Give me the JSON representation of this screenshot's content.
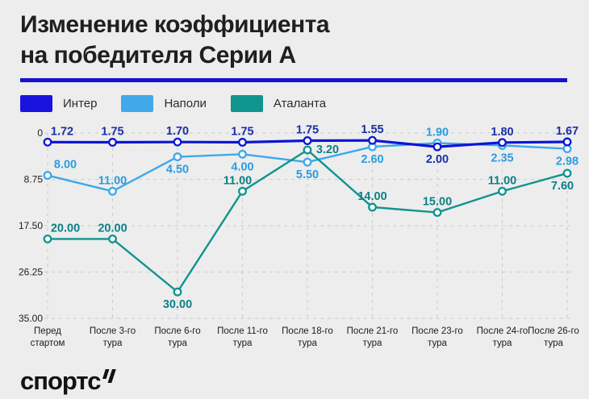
{
  "title": {
    "line1": "Изменение коэффициента",
    "line2": "на победителя Серии А"
  },
  "accent_rule_color": "#1512d0",
  "background_color": "#ededed",
  "legend": [
    {
      "label": "Интер",
      "color": "#1a13e0"
    },
    {
      "label": "Наполи",
      "color": "#41a9ea"
    },
    {
      "label": "Аталанта",
      "color": "#0f948e"
    }
  ],
  "chart_data": {
    "type": "line",
    "title": "Изменение коэффициента на победителя Серии А",
    "categories": [
      [
        "Перед",
        "стартом"
      ],
      [
        "После 3-го",
        "тура"
      ],
      [
        "После 6-го",
        "тура"
      ],
      [
        "После 11-го",
        "тура"
      ],
      [
        "После 18-го",
        "тура"
      ],
      [
        "После 21-го",
        "тура"
      ],
      [
        "После 23-го",
        "тура"
      ],
      [
        "После 24-го",
        "тура"
      ],
      [
        "После 26-го",
        "тура"
      ]
    ],
    "y_ticks": [
      "0",
      "8.75",
      "17.50",
      "26.25",
      "35.00"
    ],
    "y_tick_values": [
      0,
      8.75,
      17.5,
      26.25,
      35
    ],
    "ylim": [
      0,
      35
    ],
    "y_inverted": true,
    "grid": true,
    "legend_position": "top-left",
    "series": [
      {
        "key": "inter",
        "name": "Интер",
        "color": "#0d15d6",
        "label_color": "#1c2fa8",
        "width": 3.2,
        "values": [
          1.72,
          1.75,
          1.7,
          1.75,
          1.75,
          1.55,
          2.0,
          1.8,
          1.67
        ],
        "labels": [
          "1.72",
          "1.75",
          "1.70",
          "1.75",
          "1.75",
          "1.55",
          "2.00",
          "1.80",
          "1.67"
        ],
        "label_pos": [
          "above",
          "above",
          "above",
          "above",
          "above",
          "above",
          "below",
          "above",
          "above"
        ],
        "label_dx": [
          18,
          0,
          0,
          0,
          0,
          0,
          0,
          0,
          0
        ],
        "dy": [
          0,
          0,
          0,
          0,
          -2,
          -1,
          4,
          0,
          0
        ]
      },
      {
        "key": "napoli",
        "name": "Наполи",
        "color": "#3ca8ea",
        "label_color": "#2a9de2",
        "width": 2.4,
        "values": [
          8.0,
          11.0,
          4.5,
          4.0,
          5.5,
          2.6,
          1.9,
          2.35,
          2.98
        ],
        "labels": [
          "8.00",
          "11.00",
          "4.50",
          "4.00",
          "5.50",
          "2.60",
          "1.90",
          "2.35",
          "2.98"
        ],
        "label_pos": [
          "above",
          "above",
          "below",
          "below",
          "below",
          "below",
          "above",
          "below",
          "below"
        ],
        "label_dx": [
          22,
          0,
          0,
          0,
          0,
          0,
          0,
          0,
          0
        ],
        "dy": [
          0,
          0,
          0,
          0,
          0,
          0,
          0,
          0,
          0
        ]
      },
      {
        "key": "atalanta",
        "name": "Аталанта",
        "color": "#0f948e",
        "label_color": "#0c8186",
        "width": 2.4,
        "values": [
          20.0,
          20.0,
          30.0,
          11.0,
          3.2,
          14.0,
          15.0,
          11.0,
          7.6
        ],
        "labels": [
          "20.00",
          "20.00",
          "30.00",
          "11.00",
          "3.20",
          "14.00",
          "15.00",
          "11.00",
          "7.60"
        ],
        "label_pos": [
          "above",
          "above",
          "below",
          "above",
          "right",
          "above",
          "above",
          "above",
          "below"
        ],
        "label_dx": [
          22,
          0,
          0,
          -6,
          25,
          0,
          0,
          0,
          -6
        ],
        "dy": [
          0,
          0,
          0,
          0,
          0,
          0,
          0,
          0,
          0
        ]
      }
    ]
  },
  "footer": {
    "logo_text": "спортс"
  }
}
